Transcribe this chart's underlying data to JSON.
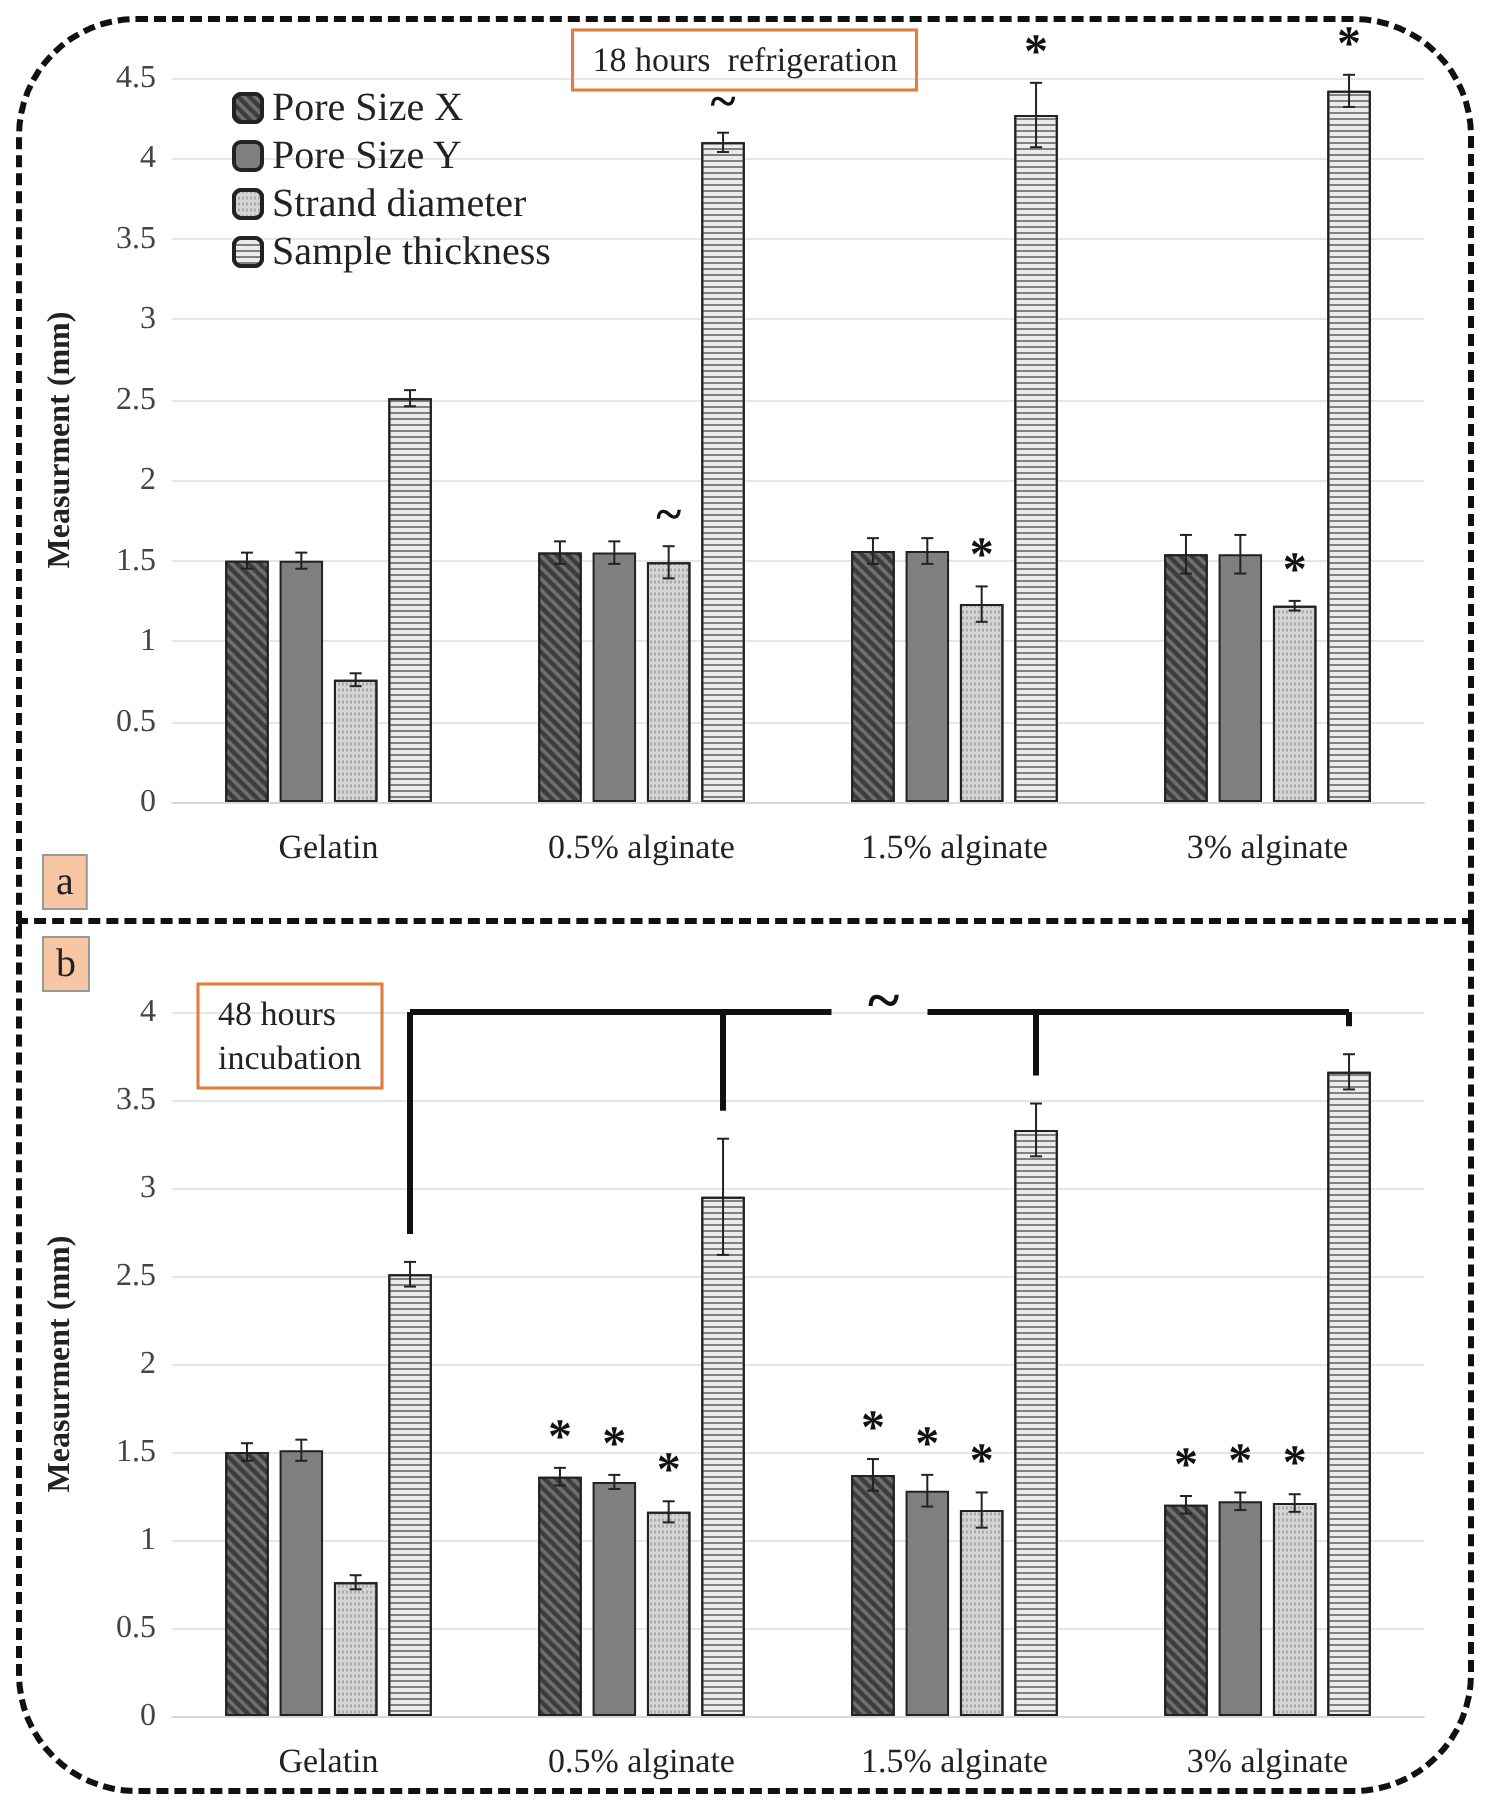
{
  "chart_data": [
    {
      "type": "bar",
      "title": "18 hours  refrigeration",
      "ylabel": "Measurment (mm)",
      "categories": [
        "Gelatin",
        "0.5% alginate",
        "1.5% alginate",
        "3% alginate"
      ],
      "ylim": [
        0,
        4.5
      ],
      "yticks": [
        0,
        0.5,
        1,
        1.5,
        2,
        2.5,
        3,
        3.5,
        4,
        4.5
      ],
      "grid": "y",
      "legend": "top left",
      "annotations": [
        "a"
      ],
      "series": [
        {
          "name": "Pore Size X",
          "color": "#3c3c3c",
          "values": [
            1.5,
            1.55,
            1.56,
            1.54
          ],
          "errors": [
            0.05,
            0.07,
            0.08,
            0.12
          ]
        },
        {
          "name": "Pore Size Y",
          "color": "#7f7f7f",
          "values": [
            1.5,
            1.55,
            1.56,
            1.54
          ],
          "errors": [
            0.05,
            0.07,
            0.08,
            0.12
          ]
        },
        {
          "name": "Strand diameter",
          "color": "#d4d4d4",
          "values": [
            0.76,
            1.49,
            1.23,
            1.22
          ],
          "errors": [
            0.04,
            0.1,
            0.11,
            0.03
          ],
          "value_labels": [
            null,
            "~",
            "*",
            "*"
          ]
        },
        {
          "name": "Sample thickness",
          "color": "#ebebeb",
          "values": [
            2.51,
            4.1,
            4.27,
            4.42
          ],
          "errors": [
            0.05,
            0.06,
            0.2,
            0.1
          ],
          "value_labels": [
            null,
            "~",
            "*",
            "*"
          ]
        }
      ]
    },
    {
      "type": "bar",
      "title": "48 hours\nincubation",
      "ylabel": "Measurment (mm)",
      "categories": [
        "Gelatin",
        "0.5% alginate",
        "1.5% alginate",
        "3% alginate"
      ],
      "ylim": [
        0,
        4
      ],
      "yticks": [
        0,
        0.5,
        1,
        1.5,
        2,
        2.5,
        3,
        3.5,
        4
      ],
      "grid": "y",
      "annotations": [
        "b",
        "~"
      ],
      "series": [
        {
          "color": "#3c3c3c",
          "values": [
            1.5,
            1.36,
            1.37,
            1.2
          ],
          "errors": [
            0.05,
            0.05,
            0.09,
            0.05
          ],
          "value_labels": [
            null,
            "*",
            "*",
            "*"
          ]
        },
        {
          "color": "#7f7f7f",
          "values": [
            1.51,
            1.33,
            1.28,
            1.22
          ],
          "errors": [
            0.06,
            0.04,
            0.09,
            0.05
          ],
          "value_labels": [
            null,
            "*",
            "*",
            "*"
          ]
        },
        {
          "color": "#d4d4d4",
          "values": [
            0.76,
            1.16,
            1.17,
            1.21
          ],
          "errors": [
            0.04,
            0.06,
            0.1,
            0.05
          ],
          "value_labels": [
            null,
            "*",
            "*",
            "*"
          ]
        },
        {
          "color": "#ebebeb",
          "values": [
            2.51,
            2.95,
            3.33,
            3.66
          ],
          "errors": [
            0.07,
            0.33,
            0.15,
            0.1
          ]
        }
      ]
    }
  ]
}
